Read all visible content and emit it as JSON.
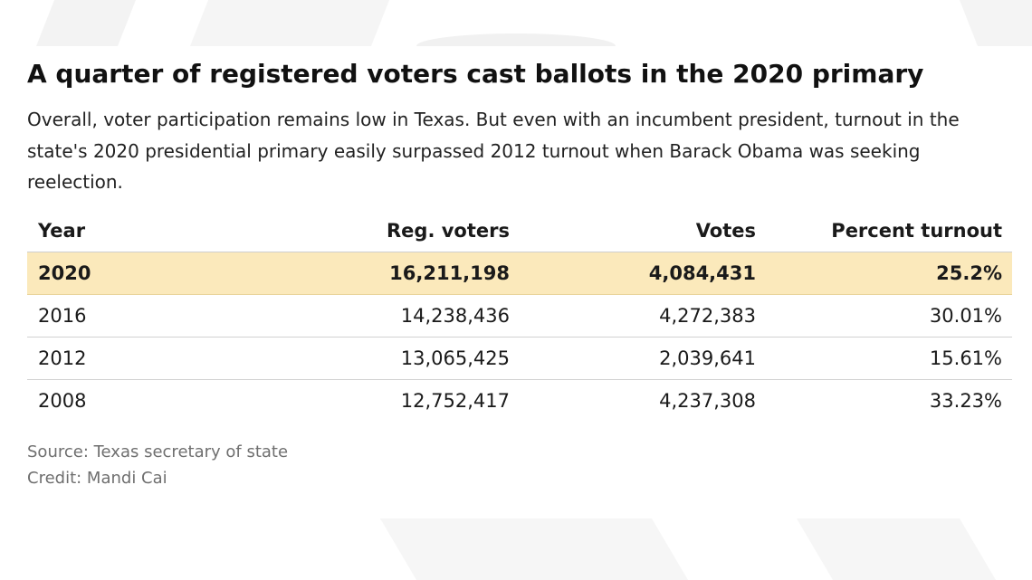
{
  "chart_data": {
    "type": "table",
    "title": "A quarter of registered voters cast ballots in the 2020 primary",
    "subtitle": "Overall, voter participation remains low in Texas. But even with an incumbent president, turnout in the state's 2020 presidential primary easily surpassed 2012 turnout when Barack Obama was seeking reelection.",
    "columns": [
      "Year",
      "Reg. voters",
      "Votes",
      "Percent turnout"
    ],
    "rows": [
      {
        "year": "2020",
        "reg_voters": "16,211,198",
        "votes": "4,084,431",
        "percent_turnout": "25.2%",
        "highlighted": true
      },
      {
        "year": "2016",
        "reg_voters": "14,238,436",
        "votes": "4,272,383",
        "percent_turnout": "30.01%",
        "highlighted": false
      },
      {
        "year": "2012",
        "reg_voters": "13,065,425",
        "votes": "2,039,641",
        "percent_turnout": "15.61%",
        "highlighted": false
      },
      {
        "year": "2008",
        "reg_voters": "12,752,417",
        "votes": "4,237,308",
        "percent_turnout": "33.23%",
        "highlighted": false
      }
    ],
    "source": "Source: Texas secretary of state",
    "credit": "Credit: Mandi Cai"
  },
  "colors": {
    "highlight_row": "#fbe9bb",
    "text": "#1a1a1a",
    "footer_text": "#6f6f6f",
    "divider": "#d2d2d2"
  }
}
